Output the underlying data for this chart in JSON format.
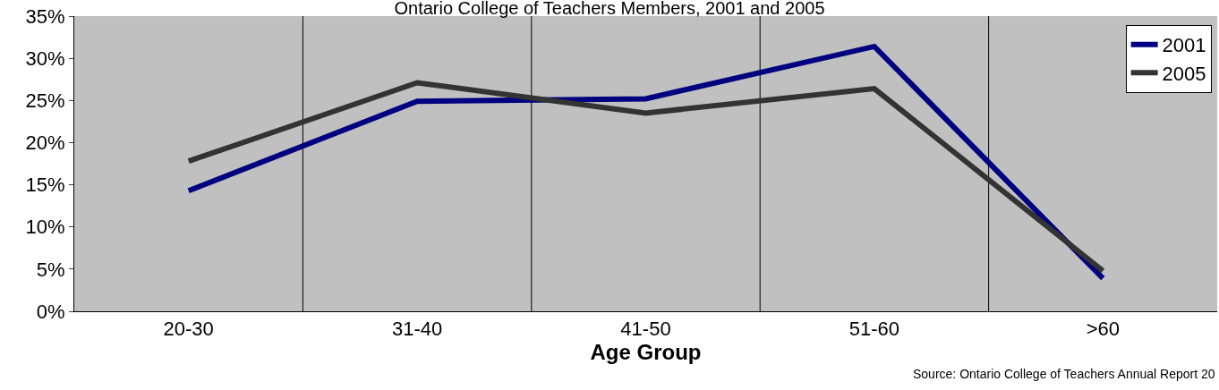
{
  "chart_data": {
    "type": "line",
    "title": "Ontario College of Teachers Members, 2001 and 2005",
    "xlabel": "Age Group",
    "categories": [
      "20-30",
      "31-40",
      "41-50",
      "51-60",
      ">60"
    ],
    "series": [
      {
        "name": "2001",
        "color": "#000080",
        "values": [
          14.3,
          24.9,
          25.2,
          31.4,
          3.9
        ]
      },
      {
        "name": "2005",
        "color": "#333333",
        "values": [
          17.8,
          27.1,
          23.5,
          26.4,
          4.8
        ]
      }
    ],
    "ylim": [
      0,
      35
    ],
    "yticks": [
      {
        "value": 0,
        "label": "0%"
      },
      {
        "value": 5,
        "label": "5%"
      },
      {
        "value": 10,
        "label": "10%"
      },
      {
        "value": 15,
        "label": "15%"
      },
      {
        "value": 20,
        "label": "20%"
      },
      {
        "value": 25,
        "label": "25%"
      },
      {
        "value": 30,
        "label": "30%"
      },
      {
        "value": 35,
        "label": "35%"
      }
    ],
    "grid": "x",
    "legend": "top right",
    "marker": "none",
    "line_style": "solid",
    "annotations": [
      "Source: Ontario College of Teachers Annual Report 20"
    ]
  }
}
